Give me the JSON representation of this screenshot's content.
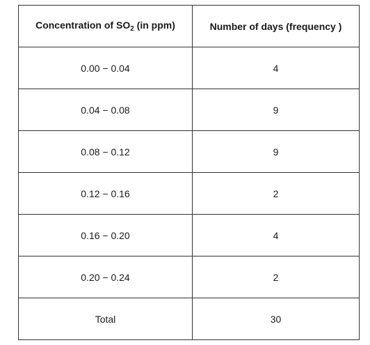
{
  "table": {
    "headers": {
      "concentration": {
        "prefix": "Concentration of SO",
        "subscript": "2",
        "suffix": " (in ppm)"
      },
      "frequency": "Number of days (frequency )"
    },
    "rows": [
      {
        "range": "0.00 − 0.04",
        "days": "4"
      },
      {
        "range": "0.04 − 0.08",
        "days": "9"
      },
      {
        "range": "0.08 − 0.12",
        "days": "9"
      },
      {
        "range": "0.12 − 0.16",
        "days": "2"
      },
      {
        "range": "0.16 − 0.20",
        "days": "4"
      },
      {
        "range": "0.20 − 0.24",
        "days": "2"
      }
    ],
    "total": {
      "label": "Total",
      "value": "30"
    }
  }
}
